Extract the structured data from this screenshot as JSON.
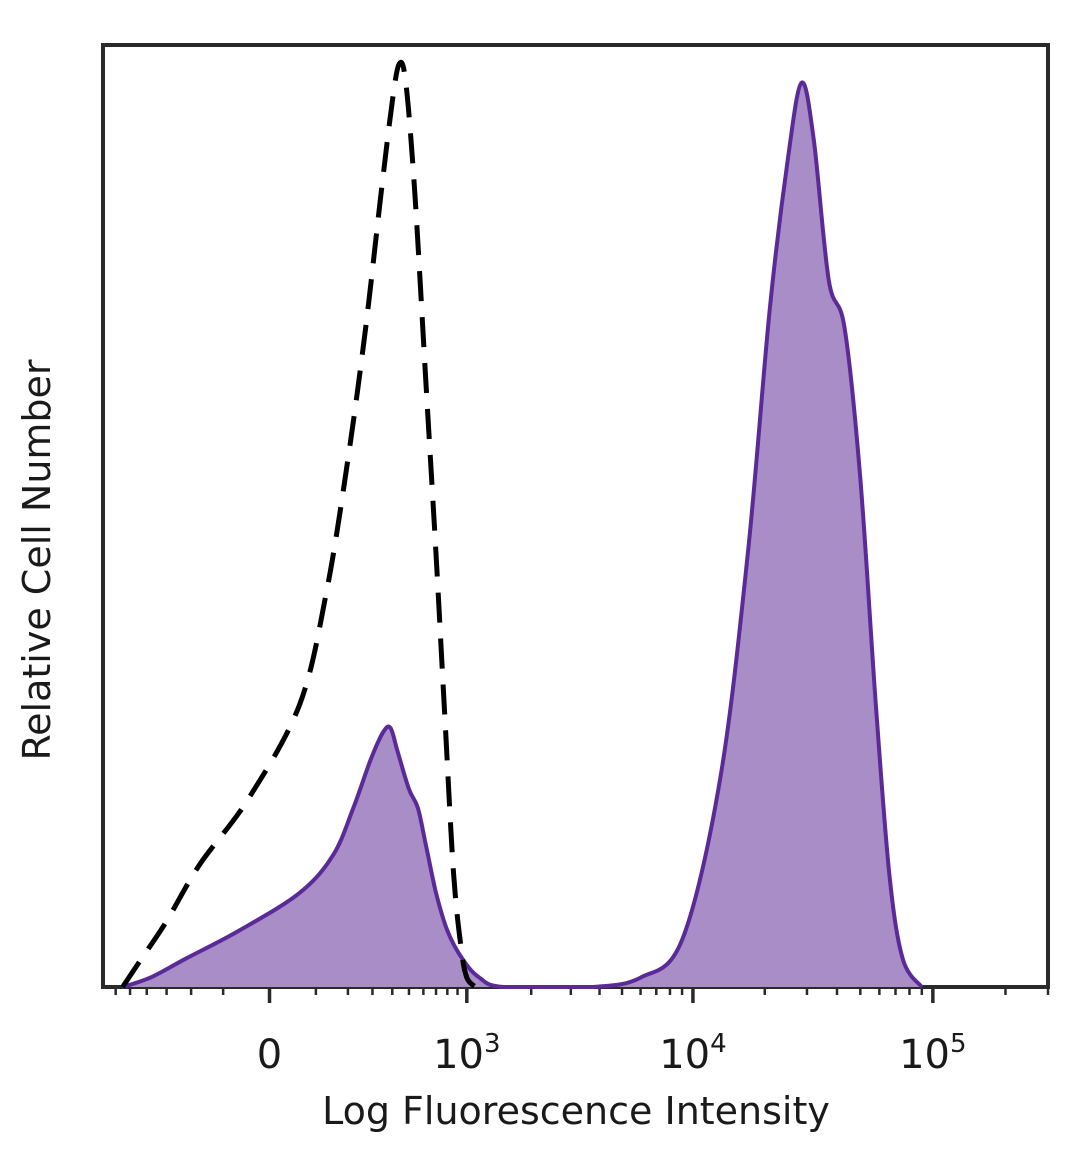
{
  "chart_data": {
    "type": "area",
    "xscale": "biexponential",
    "xlabel": "Log Fluorescence Intensity",
    "ylabel": "Relative Cell Number",
    "x_ticks": [
      {
        "value": 0,
        "base": "0",
        "exp": ""
      },
      {
        "value": 1000,
        "base": "10",
        "exp": "3"
      },
      {
        "value": 10000,
        "base": "10",
        "exp": "4"
      },
      {
        "value": 100000,
        "base": "10",
        "exp": "5"
      }
    ],
    "xlim": [
      -700,
      300000
    ],
    "ylim": [
      0,
      100
    ],
    "grid": false,
    "legend": "none",
    "series": [
      {
        "style": "dashed",
        "color": "#000000",
        "fill": "none",
        "points": [
          [
            -550,
            0
          ],
          [
            -430,
            3
          ],
          [
            -300,
            7
          ],
          [
            -170,
            13
          ],
          [
            -40,
            20
          ],
          [
            60,
            30
          ],
          [
            130,
            42
          ],
          [
            200,
            56
          ],
          [
            270,
            70
          ],
          [
            340,
            84
          ],
          [
            400,
            94
          ],
          [
            440,
            98
          ],
          [
            480,
            96
          ],
          [
            540,
            84
          ],
          [
            620,
            64
          ],
          [
            700,
            46
          ],
          [
            780,
            28
          ],
          [
            860,
            12
          ],
          [
            940,
            4
          ],
          [
            1000,
            1
          ],
          [
            1100,
            0
          ]
        ]
      },
      {
        "style": "solid",
        "color": "#5b2a99",
        "fill": "#a98dc6",
        "points": [
          [
            -550,
            0
          ],
          [
            -380,
            1
          ],
          [
            -220,
            3
          ],
          [
            -60,
            6
          ],
          [
            60,
            10
          ],
          [
            150,
            14
          ],
          [
            220,
            19
          ],
          [
            290,
            24
          ],
          [
            350,
            27
          ],
          [
            390,
            27.5
          ],
          [
            430,
            25
          ],
          [
            500,
            21
          ],
          [
            560,
            19
          ],
          [
            620,
            15
          ],
          [
            700,
            10
          ],
          [
            800,
            6
          ],
          [
            950,
            3
          ],
          [
            1150,
            1
          ],
          [
            1500,
            0
          ],
          [
            3700,
            0
          ],
          [
            6000,
            1
          ],
          [
            9000,
            5
          ],
          [
            13000,
            22
          ],
          [
            17000,
            46
          ],
          [
            21000,
            72
          ],
          [
            25000,
            88
          ],
          [
            28500,
            96
          ],
          [
            32000,
            90
          ],
          [
            37000,
            75
          ],
          [
            43000,
            70
          ],
          [
            50000,
            54
          ],
          [
            58000,
            30
          ],
          [
            66000,
            12
          ],
          [
            75000,
            3
          ],
          [
            90000,
            0
          ]
        ]
      }
    ]
  }
}
